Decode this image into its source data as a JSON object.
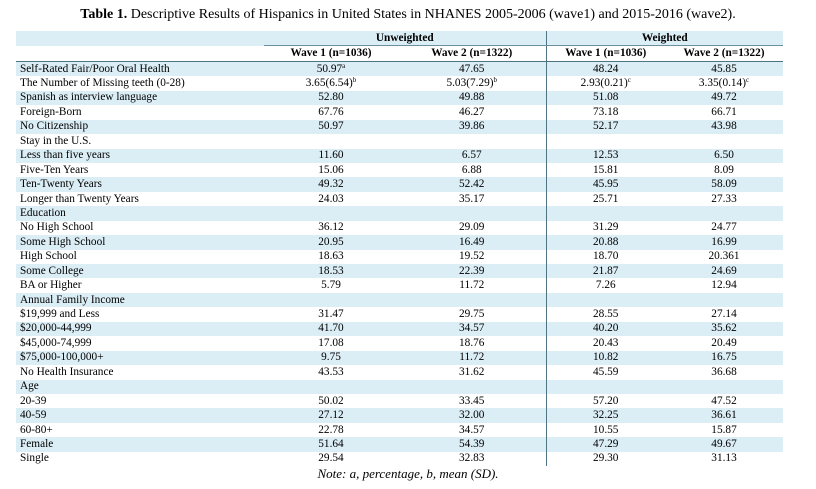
{
  "caption": {
    "label": "Table 1.",
    "text": " Descriptive Results of Hispanics in United States in NHANES 2005-2006 (wave1) and 2015-2016 (wave2)."
  },
  "header": {
    "groups": [
      "Unweighted",
      "Weighted"
    ],
    "columns": [
      "Wave 1 (n=1036)",
      "Wave 2 (n=1322)",
      "Wave 1 (n=1036)",
      "Wave 2 (n=1322)"
    ]
  },
  "rows": [
    {
      "label": "Self-Rated Fair/Poor Oral Health",
      "values": [
        "50.97",
        "47.65",
        "48.24",
        "45.85"
      ],
      "sups": [
        "a",
        "",
        "",
        ""
      ]
    },
    {
      "label": "The Number of Missing teeth (0-28)",
      "values": [
        "3.65(6.54)",
        "5.03(7.29)",
        "2.93(0.21)",
        "3.35(0.14)"
      ],
      "sups": [
        "b",
        "b",
        "c",
        "c"
      ]
    },
    {
      "label": "Spanish as interview language",
      "values": [
        "52.80",
        "49.88",
        "51.08",
        "49.72"
      ]
    },
    {
      "label": "Foreign-Born",
      "values": [
        "67.76",
        "46.27",
        "73.18",
        "66.71"
      ]
    },
    {
      "label": "No Citizenship",
      "values": [
        "50.97",
        "39.86",
        "52.17",
        "43.98"
      ]
    },
    {
      "label": "Stay in the U.S.",
      "values": [
        "",
        "",
        "",
        ""
      ]
    },
    {
      "label": "Less than five years",
      "values": [
        "11.60",
        "6.57",
        "12.53",
        "6.50"
      ]
    },
    {
      "label": "Five-Ten Years",
      "values": [
        "15.06",
        "6.88",
        "15.81",
        "8.09"
      ]
    },
    {
      "label": "Ten-Twenty Years",
      "values": [
        "49.32",
        "52.42",
        "45.95",
        "58.09"
      ]
    },
    {
      "label": "Longer than Twenty Years",
      "values": [
        "24.03",
        "35.17",
        "25.71",
        "27.33"
      ]
    },
    {
      "label": "Education",
      "values": [
        "",
        "",
        "",
        ""
      ]
    },
    {
      "label": "No High School",
      "values": [
        "36.12",
        "29.09",
        "31.29",
        "24.77"
      ]
    },
    {
      "label": "Some High School",
      "values": [
        "20.95",
        "16.49",
        "20.88",
        "16.99"
      ]
    },
    {
      "label": "High School",
      "values": [
        "18.63",
        "19.52",
        "18.70",
        "20.361"
      ]
    },
    {
      "label": "Some College",
      "values": [
        "18.53",
        "22.39",
        "21.87",
        "24.69"
      ]
    },
    {
      "label": "BA or Higher",
      "values": [
        "5.79",
        "11.72",
        "7.26",
        "12.94"
      ]
    },
    {
      "label": "Annual Family Income",
      "values": [
        "",
        "",
        "",
        ""
      ]
    },
    {
      "label": "$19,999 and Less",
      "values": [
        "31.47",
        "29.75",
        "28.55",
        "27.14"
      ]
    },
    {
      "label": "$20,000-44,999",
      "values": [
        "41.70",
        "34.57",
        "40.20",
        "35.62"
      ]
    },
    {
      "label": "$45,000-74,999",
      "values": [
        "17.08",
        "18.76",
        "20.43",
        "20.49"
      ]
    },
    {
      "label": "$75,000-100,000+",
      "values": [
        "9.75",
        "11.72",
        "10.82",
        "16.75"
      ]
    },
    {
      "label": "No Health Insurance",
      "values": [
        "43.53",
        "31.62",
        "45.59",
        "36.68"
      ]
    },
    {
      "label": "Age",
      "values": [
        "",
        "",
        "",
        ""
      ]
    },
    {
      "label": "20-39",
      "values": [
        "50.02",
        "33.45",
        "57.20",
        "47.52"
      ]
    },
    {
      "label": "40-59",
      "values": [
        "27.12",
        "32.00",
        "32.25",
        "36.61"
      ]
    },
    {
      "label": "60-80+",
      "values": [
        "22.78",
        "34.57",
        "10.55",
        "15.87"
      ]
    },
    {
      "label": "Female",
      "values": [
        "51.64",
        "54.39",
        "47.29",
        "49.67"
      ]
    },
    {
      "label": "Single",
      "values": [
        "29.54",
        "32.83",
        "29.30",
        "31.13"
      ]
    }
  ],
  "note": "Note: a, percentage, b, mean (SD).",
  "colors": {
    "band": "#dbedf5",
    "rule": "#4f7383"
  }
}
